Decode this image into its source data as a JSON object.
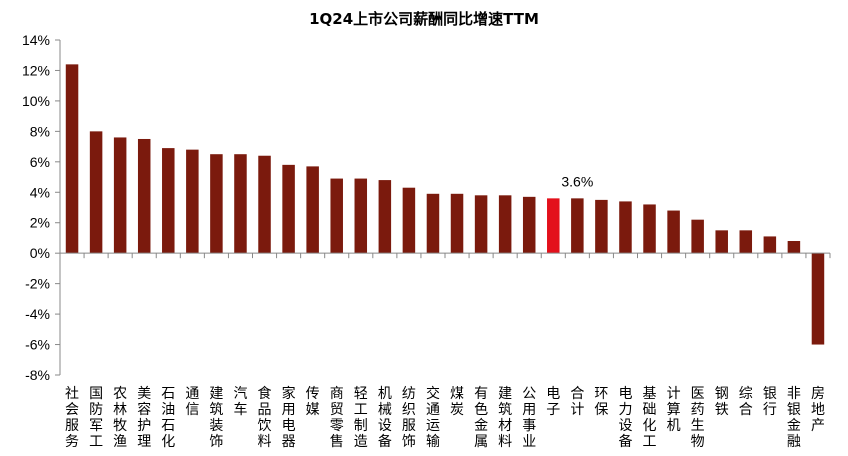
{
  "chart_data": {
    "type": "bar",
    "title": "1Q24上市公司薪酬同比增速TTM",
    "xlabel": "",
    "ylabel": "",
    "ylim": [
      -8,
      14
    ],
    "yticks": [
      -8,
      -6,
      -4,
      -2,
      0,
      2,
      4,
      6,
      8,
      10,
      12,
      14
    ],
    "ytick_labels": [
      "-8%",
      "-6%",
      "-4%",
      "-2%",
      "0%",
      "2%",
      "4%",
      "6%",
      "8%",
      "10%",
      "12%",
      "14%"
    ],
    "grid": false,
    "legend": "none",
    "bar_color": "#7b1a0d",
    "highlight_color": "#e3101b",
    "highlight_index": 20,
    "categories": [
      "社会服务",
      "国防军工",
      "农林牧渔",
      "美容护理",
      "石油石化",
      "通信",
      "建筑装饰",
      "汽车",
      "食品饮料",
      "家用电器",
      "传媒",
      "商贸零售",
      "轻工制造",
      "机械设备",
      "纺织服饰",
      "交通运输",
      "煤炭",
      "有色金属",
      "建筑材料",
      "公用事业",
      "电子",
      "合计",
      "环保",
      "电力设备",
      "基础化工",
      "计算机",
      "医药生物",
      "钢铁",
      "综合",
      "银行",
      "非银金融",
      "房地产"
    ],
    "values": [
      12.4,
      8.0,
      7.6,
      7.5,
      6.9,
      6.8,
      6.5,
      6.5,
      6.4,
      5.8,
      5.7,
      4.9,
      4.9,
      4.8,
      4.3,
      3.9,
      3.9,
      3.8,
      3.8,
      3.7,
      3.6,
      3.6,
      3.5,
      3.4,
      3.2,
      2.8,
      2.2,
      1.5,
      1.5,
      1.1,
      0.8,
      -6.0
    ],
    "data_labels": [
      {
        "index": 21,
        "text": "3.6%"
      }
    ]
  }
}
